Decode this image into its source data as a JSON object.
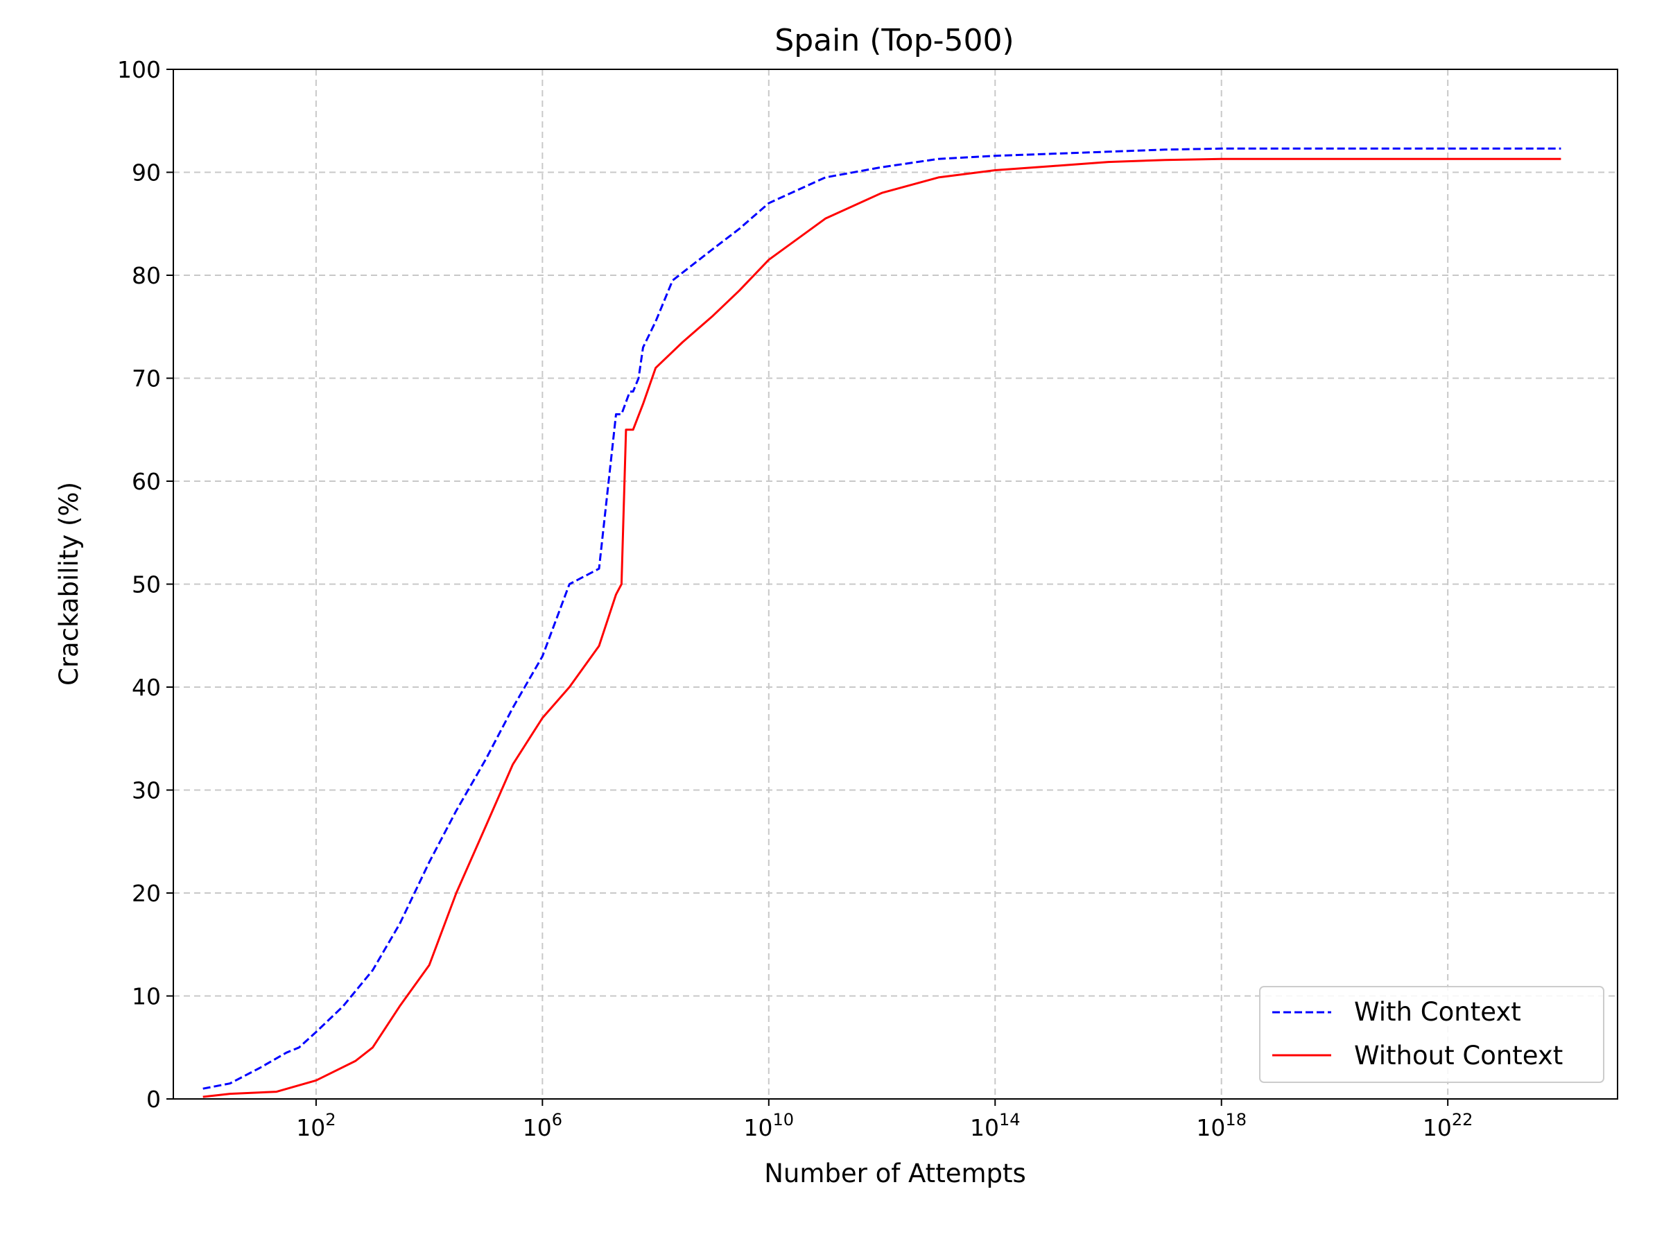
{
  "chart_data": {
    "type": "line",
    "title": "Spain (Top-500)",
    "xlabel": "Number of Attempts",
    "ylabel": "Crackability (%)",
    "xscale": "log",
    "xlim": [
      0.3,
      1e+25
    ],
    "ylim": [
      0,
      100
    ],
    "grid": true,
    "legend_position": "bottom-right",
    "x_ticks": [
      {
        "exp": "2",
        "value": 100
      },
      {
        "exp": "6",
        "value": 1000000.0
      },
      {
        "exp": "10",
        "value": 10000000000.0
      },
      {
        "exp": "14",
        "value": 100000000000000.0
      },
      {
        "exp": "18",
        "value": 1e+18
      },
      {
        "exp": "22",
        "value": 1e+22
      }
    ],
    "y_ticks": [
      "0",
      "10",
      "20",
      "30",
      "40",
      "50",
      "60",
      "70",
      "80",
      "90",
      "100"
    ],
    "series": [
      {
        "name": "With Context",
        "color": "#0000ff",
        "style": "dashed",
        "x": [
          1,
          3,
          10,
          30,
          50,
          100,
          300,
          1000,
          3000,
          10000,
          30000,
          100000,
          300000,
          1000000,
          3000000,
          10000000,
          20000000,
          25000000,
          35000000,
          40000000,
          50000000,
          60000000,
          100000000,
          200000000,
          1000000000,
          3000000000,
          10000000000,
          100000000000,
          1000000000000,
          10000000000000,
          100000000000000,
          1000000000000000.0,
          1e+16,
          1e+17,
          1e+18,
          1e+20,
          1e+22,
          1e+24
        ],
        "y": [
          1.0,
          1.5,
          3.0,
          4.5,
          5.0,
          6.5,
          9.0,
          12.5,
          17.0,
          23.0,
          28.0,
          33.0,
          38.0,
          43.0,
          50.0,
          51.5,
          66.5,
          66.5,
          68.7,
          68.7,
          70.0,
          73.0,
          75.5,
          79.5,
          82.5,
          84.5,
          87.0,
          89.5,
          90.5,
          91.3,
          91.6,
          91.8,
          92.0,
          92.2,
          92.3,
          92.3,
          92.3,
          92.3
        ]
      },
      {
        "name": "Without Context",
        "color": "#ff0000",
        "style": "solid",
        "x": [
          1,
          3,
          20,
          100,
          500,
          1000,
          3000,
          10000,
          30000,
          100000,
          300000,
          1000000,
          3000000,
          10000000,
          20000000,
          25000000,
          30000000,
          40000000,
          60000000,
          100000000,
          300000000,
          1000000000,
          3000000000,
          10000000000,
          100000000000,
          1000000000000,
          10000000000000,
          100000000000000,
          1000000000000000.0,
          1e+16,
          1e+17,
          1e+18,
          1e+20,
          1e+22,
          1e+24
        ],
        "y": [
          0.2,
          0.5,
          0.7,
          1.8,
          3.7,
          5.0,
          9.0,
          13.0,
          20.0,
          26.5,
          32.5,
          37.0,
          40.0,
          44.0,
          49.0,
          50.0,
          65.0,
          65.0,
          67.5,
          71.0,
          73.5,
          76.0,
          78.5,
          81.5,
          85.5,
          88.0,
          89.5,
          90.2,
          90.6,
          91.0,
          91.2,
          91.3,
          91.3,
          91.3,
          91.3
        ]
      }
    ]
  }
}
